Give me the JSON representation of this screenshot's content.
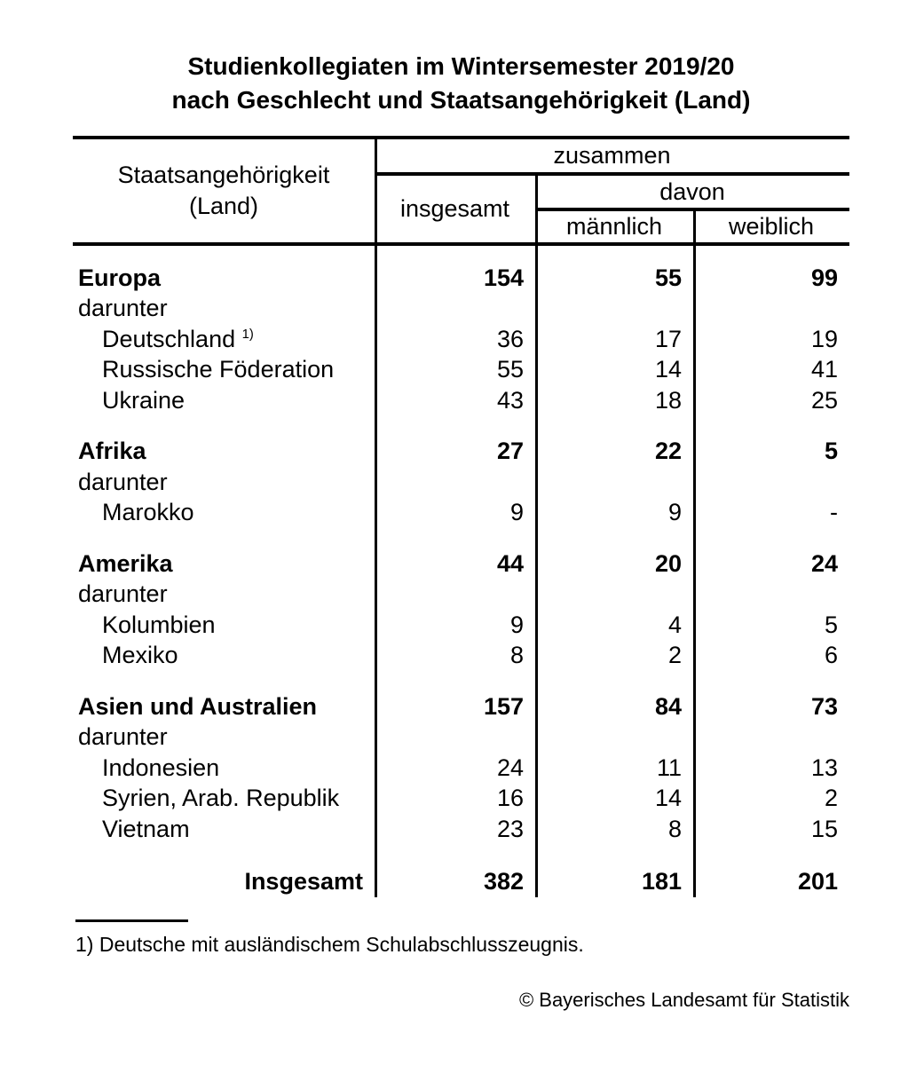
{
  "colors": {
    "text": "#000000",
    "background": "#ffffff"
  },
  "title": {
    "line1": "Studienkollegiaten im Wintersemester 2019/20",
    "line2": "nach Geschlecht und Staatsangehörigkeit (Land)"
  },
  "table": {
    "header": {
      "col1_line1": "Staatsangehörigkeit",
      "col1_line2": "(Land)",
      "zusammen": "zusammen",
      "insgesamt": "insgesamt",
      "davon": "davon",
      "maennlich": "männlich",
      "weiblich": "weiblich"
    },
    "sections": [
      {
        "name": "Europa",
        "total": "154",
        "male": "55",
        "female": "99",
        "darunter_label": "darunter",
        "countries": [
          {
            "name": "Deutschland",
            "footnote_marker": "1)",
            "total": "36",
            "male": "17",
            "female": "19"
          },
          {
            "name": "Russische Föderation",
            "total": "55",
            "male": "14",
            "female": "41"
          },
          {
            "name": "Ukraine",
            "total": "43",
            "male": "18",
            "female": "25"
          }
        ]
      },
      {
        "name": "Afrika",
        "total": "27",
        "male": "22",
        "female": "5",
        "darunter_label": "darunter",
        "countries": [
          {
            "name": "Marokko",
            "total": "9",
            "male": "9",
            "female": "-"
          }
        ]
      },
      {
        "name": "Amerika",
        "total": "44",
        "male": "20",
        "female": "24",
        "darunter_label": "darunter",
        "countries": [
          {
            "name": "Kolumbien",
            "total": "9",
            "male": "4",
            "female": "5"
          },
          {
            "name": "Mexiko",
            "total": "8",
            "male": "2",
            "female": "6"
          }
        ]
      },
      {
        "name": "Asien und Australien",
        "total": "157",
        "male": "84",
        "female": "73",
        "darunter_label": "darunter",
        "countries": [
          {
            "name": "Indonesien",
            "total": "24",
            "male": "11",
            "female": "13"
          },
          {
            "name": "Syrien, Arab. Republik",
            "total": "16",
            "male": "14",
            "female": "2"
          },
          {
            "name": "Vietnam",
            "total": "23",
            "male": "8",
            "female": "15"
          }
        ]
      }
    ],
    "total_row": {
      "label": "Insgesamt",
      "total": "382",
      "male": "181",
      "female": "201"
    }
  },
  "footnote": "1) Deutsche mit ausländischem Schulabschlusszeugnis.",
  "copyright": "© Bayerisches Landesamt für Statistik"
}
